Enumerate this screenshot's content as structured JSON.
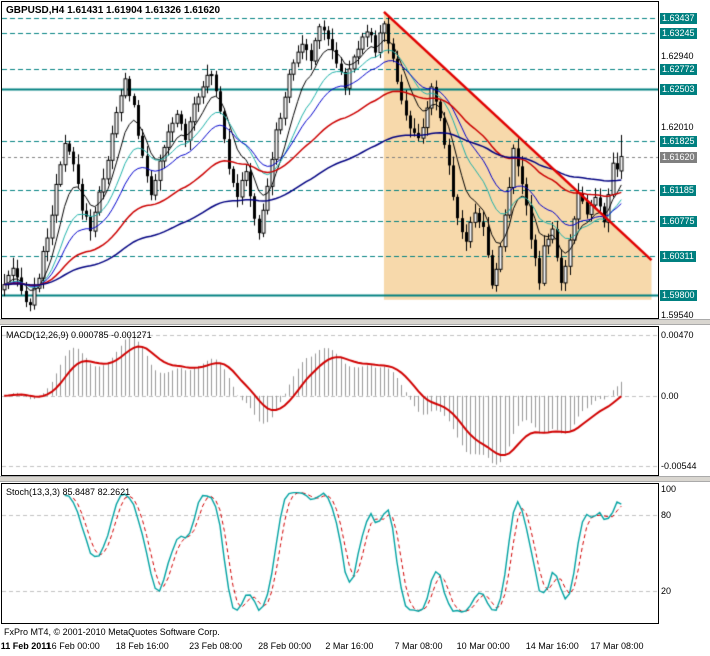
{
  "chart": {
    "symbol_title": "GBPUSD,H4 1.61431 1.61904 1.61326 1.61620",
    "footer": "FxPro MT4, © 2001-2010 MetaQuotes Software Corp.",
    "x_labels": [
      {
        "text": "11 Feb 2011",
        "i": 5,
        "bold": true
      },
      {
        "text": "16 Feb 00:00",
        "i": 16,
        "bold": false
      },
      {
        "text": "18 Feb 16:00",
        "i": 32,
        "bold": false
      },
      {
        "text": "23 Feb 08:00",
        "i": 49,
        "bold": false
      },
      {
        "text": "28 Feb 00:00",
        "i": 65,
        "bold": false
      },
      {
        "text": "2 Mar 16:00",
        "i": 80,
        "bold": false
      },
      {
        "text": "7 Mar 08:00",
        "i": 96,
        "bold": false
      },
      {
        "text": "10 Mar 00:00",
        "i": 111,
        "bold": false
      },
      {
        "text": "14 Mar 16:00",
        "i": 127,
        "bold": false
      },
      {
        "text": "17 Mar 08:00",
        "i": 142,
        "bold": false
      }
    ]
  },
  "chart_data": [
    {
      "type": "candlestick",
      "title": "GBPUSD,H4",
      "timeframe": "H4",
      "current_bar": {
        "open": 1.61431,
        "high": 1.61904,
        "low": 1.61326,
        "close": 1.6162
      },
      "price_scale": {
        "top": 1.6365,
        "bottom": 1.595
      },
      "n_candles": 144,
      "n_slots": 152,
      "price_path": [
        [
          0,
          1.5994
        ],
        [
          2,
          1.6012
        ],
        [
          4,
          1.5984
        ],
        [
          6,
          1.5968
        ],
        [
          8,
          1.6006
        ],
        [
          10,
          1.6058
        ],
        [
          12,
          1.612
        ],
        [
          14,
          1.6178
        ],
        [
          16,
          1.615
        ],
        [
          18,
          1.6095
        ],
        [
          20,
          1.6068
        ],
        [
          22,
          1.6112
        ],
        [
          24,
          1.616
        ],
        [
          26,
          1.6218
        ],
        [
          28,
          1.6262
        ],
        [
          30,
          1.6228
        ],
        [
          32,
          1.6158
        ],
        [
          34,
          1.6115
        ],
        [
          36,
          1.6152
        ],
        [
          38,
          1.619
        ],
        [
          40,
          1.6218
        ],
        [
          42,
          1.6188
        ],
        [
          44,
          1.6232
        ],
        [
          46,
          1.6258
        ],
        [
          48,
          1.627
        ],
        [
          50,
          1.6225
        ],
        [
          52,
          1.615
        ],
        [
          54,
          1.6112
        ],
        [
          56,
          1.614
        ],
        [
          58,
          1.6082
        ],
        [
          59,
          1.6058
        ],
        [
          61,
          1.6125
        ],
        [
          63,
          1.6192
        ],
        [
          65,
          1.6242
        ],
        [
          67,
          1.6288
        ],
        [
          69,
          1.631
        ],
        [
          71,
          1.6288
        ],
        [
          73,
          1.6338
        ],
        [
          75,
          1.6318
        ],
        [
          77,
          1.6288
        ],
        [
          79,
          1.6255
        ],
        [
          81,
          1.6292
        ],
        [
          83,
          1.6322
        ],
        [
          84,
          1.633
        ],
        [
          86,
          1.6302
        ],
        [
          88,
          1.6338
        ],
        [
          90,
          1.6288
        ],
        [
          92,
          1.6238
        ],
        [
          94,
          1.6198
        ],
        [
          96,
          1.6182
        ],
        [
          98,
          1.6228
        ],
        [
          99,
          1.6248
        ],
        [
          101,
          1.621
        ],
        [
          103,
          1.6148
        ],
        [
          105,
          1.608
        ],
        [
          107,
          1.6052
        ],
        [
          109,
          1.6092
        ],
        [
          111,
          1.6068
        ],
        [
          113,
          1.5995
        ],
        [
          115,
          1.6042
        ],
        [
          117,
          1.6122
        ],
        [
          118,
          1.6178
        ],
        [
          120,
          1.6128
        ],
        [
          122,
          1.6058
        ],
        [
          124,
          1.5998
        ],
        [
          125,
          1.6048
        ],
        [
          127,
          1.6062
        ],
        [
          129,
          1.5992
        ],
        [
          131,
          1.6052
        ],
        [
          133,
          1.6118
        ],
        [
          135,
          1.6088
        ],
        [
          137,
          1.6108
        ],
        [
          139,
          1.6078
        ],
        [
          141,
          1.615
        ],
        [
          142,
          1.6146
        ],
        [
          143,
          1.6162
        ]
      ],
      "levels": [
        {
          "price": 1.63437,
          "label": "1.63437",
          "style": "dashed"
        },
        {
          "price": 1.63245,
          "label": "1.63245",
          "style": "dashed"
        },
        {
          "price": 1.62772,
          "label": "1.62772",
          "style": "dashed"
        },
        {
          "price": 1.62503,
          "label": "1.62503",
          "style": "solid"
        },
        {
          "price": 1.61825,
          "label": "1.61825",
          "style": "dashed"
        },
        {
          "price": 1.61185,
          "label": "1.61185",
          "style": "dashed"
        },
        {
          "price": 1.60775,
          "label": "1.60775",
          "style": "dashed"
        },
        {
          "price": 1.60311,
          "label": "1.60311",
          "style": "dashed"
        },
        {
          "price": 1.598,
          "label": "1.59800",
          "style": "solid"
        }
      ],
      "current_price": {
        "price": 1.6162,
        "label": "1.61620"
      },
      "plain_scale_labels": [
        {
          "price": 1.6294,
          "label": "1.62940"
        },
        {
          "price": 1.6201,
          "label": "1.62010"
        },
        {
          "price": 1.5954,
          "label": "1.59540"
        }
      ],
      "moving_averages": [
        {
          "period": 8,
          "color": "#000000",
          "width": 1
        },
        {
          "period": 16,
          "color": "#20b2aa",
          "width": 1
        },
        {
          "period": 24,
          "color": "#0000cc",
          "width": 1
        },
        {
          "period": 50,
          "color": "#cc0000",
          "width": 1.5
        },
        {
          "period": 100,
          "color": "#000080",
          "width": 1.5
        }
      ],
      "trendline": {
        "i1": 88,
        "p1": 1.6352,
        "i2": 150,
        "p2": 1.6026,
        "color": "#e00000",
        "width": 2.5
      },
      "triangle_fill": {
        "points": [
          [
            88,
            1.6352
          ],
          [
            150,
            1.6026
          ],
          [
            150,
            1.5974
          ],
          [
            88,
            1.5974
          ]
        ],
        "color": "#f7d9ab"
      }
    },
    {
      "type": "macd",
      "title": "MACD(12,26,9) 0.000785 -0.001271",
      "params": {
        "fast": 12,
        "slow": 26,
        "signal": 9
      },
      "values": {
        "macd": 0.000785,
        "signal": -0.001271
      },
      "scale": {
        "top": 0.0053,
        "bottom": -0.0061
      },
      "draw_max": 0.0045,
      "draw_min": -0.0053,
      "scale_labels": [
        {
          "v": 0.0047,
          "label": "0.00470"
        },
        {
          "v": 0.0,
          "label": "0.00"
        },
        {
          "v": -0.00544,
          "label": "-0.00544"
        }
      ]
    },
    {
      "type": "stochastic",
      "title": "Stoch(13,3,3) 85.8487 82.2621",
      "params": {
        "k": 13,
        "d": 3,
        "slowing": 3
      },
      "values": {
        "k": 85.8487,
        "d": 82.2621
      },
      "levels": [
        80,
        20
      ],
      "scale_labels": [
        {
          "v": 100,
          "label": "100"
        },
        {
          "v": 80,
          "label": "80"
        },
        {
          "v": 20,
          "label": "20"
        }
      ]
    }
  ],
  "colors": {
    "level_teal": "#008080",
    "current_gray": "#808080",
    "candle_outline": "#000000",
    "bull_body": "#ffffff",
    "bear_body": "#000000",
    "macd_hist": "#999999",
    "macd_signal": "#d00000",
    "stoch_k": "#00a2a2",
    "stoch_d": "#d00000",
    "grid_silver": "#c0c0c0"
  }
}
